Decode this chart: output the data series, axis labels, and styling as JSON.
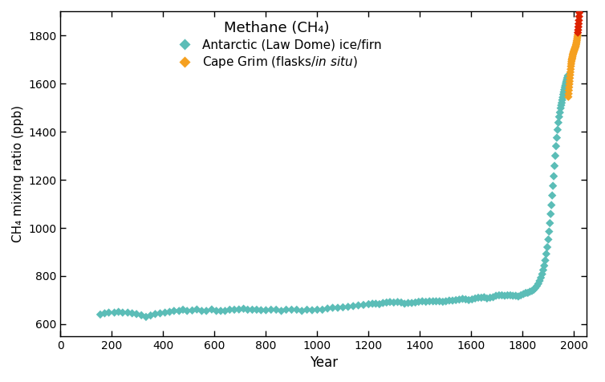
{
  "title": "Methane (CH₄)",
  "xlabel": "Year",
  "ylabel": "CH₄ mixing ratio (ppb)",
  "xlim": [
    0,
    2050
  ],
  "ylim": [
    550,
    1900
  ],
  "yticks": [
    600,
    800,
    1000,
    1200,
    1400,
    1600,
    1800
  ],
  "xticks": [
    0,
    200,
    400,
    600,
    800,
    1000,
    1200,
    1400,
    1600,
    1800,
    2000
  ],
  "teal_color": "#5bbdb7",
  "orange_color": "#f5a020",
  "red_color": "#dd2200",
  "background_color": "#ffffff",
  "law_dome_data": [
    [
      155,
      640
    ],
    [
      172,
      645
    ],
    [
      188,
      648
    ],
    [
      210,
      648
    ],
    [
      226,
      651
    ],
    [
      242,
      648
    ],
    [
      262,
      648
    ],
    [
      279,
      645
    ],
    [
      296,
      642
    ],
    [
      315,
      637
    ],
    [
      333,
      630
    ],
    [
      351,
      636
    ],
    [
      369,
      642
    ],
    [
      388,
      645
    ],
    [
      407,
      648
    ],
    [
      425,
      651
    ],
    [
      442,
      655
    ],
    [
      462,
      655
    ],
    [
      477,
      660
    ],
    [
      493,
      655
    ],
    [
      513,
      657
    ],
    [
      531,
      661
    ],
    [
      550,
      655
    ],
    [
      568,
      655
    ],
    [
      589,
      661
    ],
    [
      607,
      655
    ],
    [
      624,
      655
    ],
    [
      641,
      655
    ],
    [
      659,
      660
    ],
    [
      677,
      660
    ],
    [
      695,
      661
    ],
    [
      713,
      664
    ],
    [
      729,
      660
    ],
    [
      747,
      660
    ],
    [
      764,
      660
    ],
    [
      781,
      658
    ],
    [
      800,
      658
    ],
    [
      820,
      660
    ],
    [
      840,
      660
    ],
    [
      860,
      655
    ],
    [
      879,
      660
    ],
    [
      900,
      660
    ],
    [
      920,
      660
    ],
    [
      940,
      655
    ],
    [
      960,
      660
    ],
    [
      980,
      658
    ],
    [
      1000,
      660
    ],
    [
      1020,
      660
    ],
    [
      1040,
      665
    ],
    [
      1060,
      668
    ],
    [
      1080,
      668
    ],
    [
      1100,
      670
    ],
    [
      1120,
      672
    ],
    [
      1140,
      675
    ],
    [
      1160,
      678
    ],
    [
      1180,
      680
    ],
    [
      1200,
      683
    ],
    [
      1215,
      685
    ],
    [
      1228,
      685
    ],
    [
      1242,
      683
    ],
    [
      1256,
      688
    ],
    [
      1270,
      690
    ],
    [
      1283,
      692
    ],
    [
      1298,
      690
    ],
    [
      1313,
      692
    ],
    [
      1327,
      690
    ],
    [
      1340,
      685
    ],
    [
      1354,
      688
    ],
    [
      1368,
      688
    ],
    [
      1382,
      690
    ],
    [
      1395,
      693
    ],
    [
      1409,
      695
    ],
    [
      1423,
      693
    ],
    [
      1437,
      695
    ],
    [
      1451,
      695
    ],
    [
      1463,
      695
    ],
    [
      1476,
      695
    ],
    [
      1489,
      693
    ],
    [
      1501,
      695
    ],
    [
      1514,
      698
    ],
    [
      1527,
      698
    ],
    [
      1540,
      700
    ],
    [
      1553,
      702
    ],
    [
      1566,
      705
    ],
    [
      1578,
      703
    ],
    [
      1590,
      700
    ],
    [
      1603,
      703
    ],
    [
      1615,
      707
    ],
    [
      1627,
      710
    ],
    [
      1639,
      710
    ],
    [
      1650,
      712
    ],
    [
      1661,
      707
    ],
    [
      1673,
      710
    ],
    [
      1685,
      712
    ],
    [
      1696,
      718
    ],
    [
      1708,
      720
    ],
    [
      1719,
      720
    ],
    [
      1730,
      718
    ],
    [
      1741,
      720
    ],
    [
      1752,
      720
    ],
    [
      1762,
      718
    ],
    [
      1773,
      718
    ],
    [
      1783,
      715
    ],
    [
      1793,
      720
    ],
    [
      1803,
      725
    ],
    [
      1812,
      730
    ],
    [
      1820,
      730
    ],
    [
      1828,
      735
    ],
    [
      1836,
      738
    ],
    [
      1843,
      743
    ],
    [
      1849,
      750
    ],
    [
      1855,
      758
    ],
    [
      1861,
      768
    ],
    [
      1866,
      780
    ],
    [
      1871,
      793
    ],
    [
      1876,
      808
    ],
    [
      1880,
      825
    ],
    [
      1884,
      843
    ],
    [
      1888,
      865
    ],
    [
      1892,
      892
    ],
    [
      1896,
      920
    ],
    [
      1900,
      952
    ],
    [
      1903,
      985
    ],
    [
      1906,
      1020
    ],
    [
      1909,
      1058
    ],
    [
      1912,
      1095
    ],
    [
      1915,
      1135
    ],
    [
      1918,
      1175
    ],
    [
      1921,
      1215
    ],
    [
      1924,
      1258
    ],
    [
      1927,
      1300
    ],
    [
      1930,
      1340
    ],
    [
      1933,
      1375
    ],
    [
      1936,
      1408
    ],
    [
      1939,
      1438
    ],
    [
      1942,
      1462
    ],
    [
      1945,
      1480
    ],
    [
      1948,
      1498
    ],
    [
      1950,
      1510
    ],
    [
      1952,
      1520
    ],
    [
      1954,
      1532
    ],
    [
      1956,
      1543
    ],
    [
      1958,
      1555
    ],
    [
      1960,
      1565
    ],
    [
      1962,
      1575
    ],
    [
      1964,
      1585
    ],
    [
      1966,
      1593
    ],
    [
      1968,
      1602
    ],
    [
      1970,
      1610
    ],
    [
      1972,
      1618
    ],
    [
      1974,
      1625
    ],
    [
      1976,
      1633
    ]
  ],
  "cape_grim_orange_data": [
    [
      1978,
      1545
    ],
    [
      1979,
      1558
    ],
    [
      1980,
      1572
    ],
    [
      1981,
      1585
    ],
    [
      1982,
      1598
    ],
    [
      1983,
      1610
    ],
    [
      1984,
      1623
    ],
    [
      1985,
      1636
    ],
    [
      1986,
      1648
    ],
    [
      1987,
      1660
    ],
    [
      1988,
      1672
    ],
    [
      1989,
      1682
    ],
    [
      1990,
      1691
    ],
    [
      1991,
      1698
    ],
    [
      1992,
      1703
    ],
    [
      1993,
      1707
    ],
    [
      1994,
      1712
    ],
    [
      1995,
      1718
    ],
    [
      1996,
      1722
    ],
    [
      1997,
      1726
    ],
    [
      1998,
      1730
    ],
    [
      1999,
      1733
    ],
    [
      2000,
      1736
    ],
    [
      2001,
      1739
    ],
    [
      2002,
      1742
    ],
    [
      2003,
      1745
    ],
    [
      2004,
      1748
    ],
    [
      2005,
      1751
    ],
    [
      2006,
      1754
    ],
    [
      2007,
      1757
    ],
    [
      2008,
      1762
    ],
    [
      2009,
      1767
    ],
    [
      2010,
      1773
    ],
    [
      2011,
      1779
    ],
    [
      2012,
      1786
    ],
    [
      2013,
      1794
    ],
    [
      2014,
      1802
    ]
  ],
  "cape_grim_red_data": [
    [
      2015,
      1812
    ],
    [
      2016,
      1823
    ],
    [
      2017,
      1836
    ],
    [
      2018,
      1849
    ],
    [
      2019,
      1863
    ],
    [
      2020,
      1879
    ],
    [
      2021,
      1895
    ]
  ]
}
